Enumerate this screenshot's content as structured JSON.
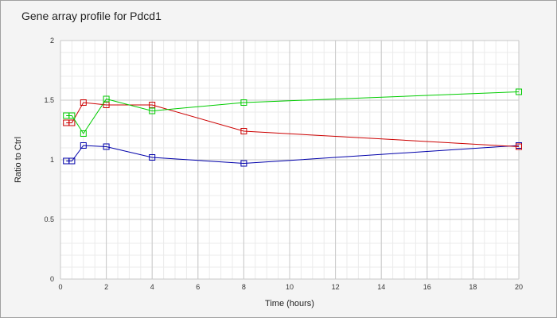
{
  "chart_data": {
    "type": "line",
    "title": "Gene array profile for Pdcd1",
    "xlabel": "Time (hours)",
    "ylabel": "Ratio to Ctrl",
    "xlim": [
      0,
      20
    ],
    "ylim": [
      0,
      2
    ],
    "x_ticks": [
      "0",
      "2",
      "4",
      "6",
      "8",
      "10",
      "12",
      "14",
      "16",
      "18",
      "20"
    ],
    "y_ticks": [
      "0",
      "0.5",
      "1",
      "1.5",
      "2"
    ],
    "grid": true,
    "legend": false,
    "marker": "square",
    "series": [
      {
        "color": "#0000aa",
        "points": [
          [
            0.25,
            0.99
          ],
          [
            0.5,
            0.99
          ],
          [
            1,
            1.12
          ],
          [
            2,
            1.11
          ],
          [
            4,
            1.02
          ],
          [
            8,
            0.97
          ],
          [
            20,
            1.12
          ]
        ]
      },
      {
        "color": "#cc0000",
        "points": [
          [
            0.25,
            1.31
          ],
          [
            0.5,
            1.31
          ],
          [
            1,
            1.48
          ],
          [
            2,
            1.46
          ],
          [
            4,
            1.46
          ],
          [
            8,
            1.24
          ],
          [
            20,
            1.11
          ]
        ]
      },
      {
        "color": "#00cc00",
        "points": [
          [
            0.25,
            1.37
          ],
          [
            0.5,
            1.37
          ],
          [
            1,
            1.22
          ],
          [
            2,
            1.51
          ],
          [
            4,
            1.41
          ],
          [
            8,
            1.48
          ],
          [
            20,
            1.57
          ]
        ]
      }
    ]
  }
}
